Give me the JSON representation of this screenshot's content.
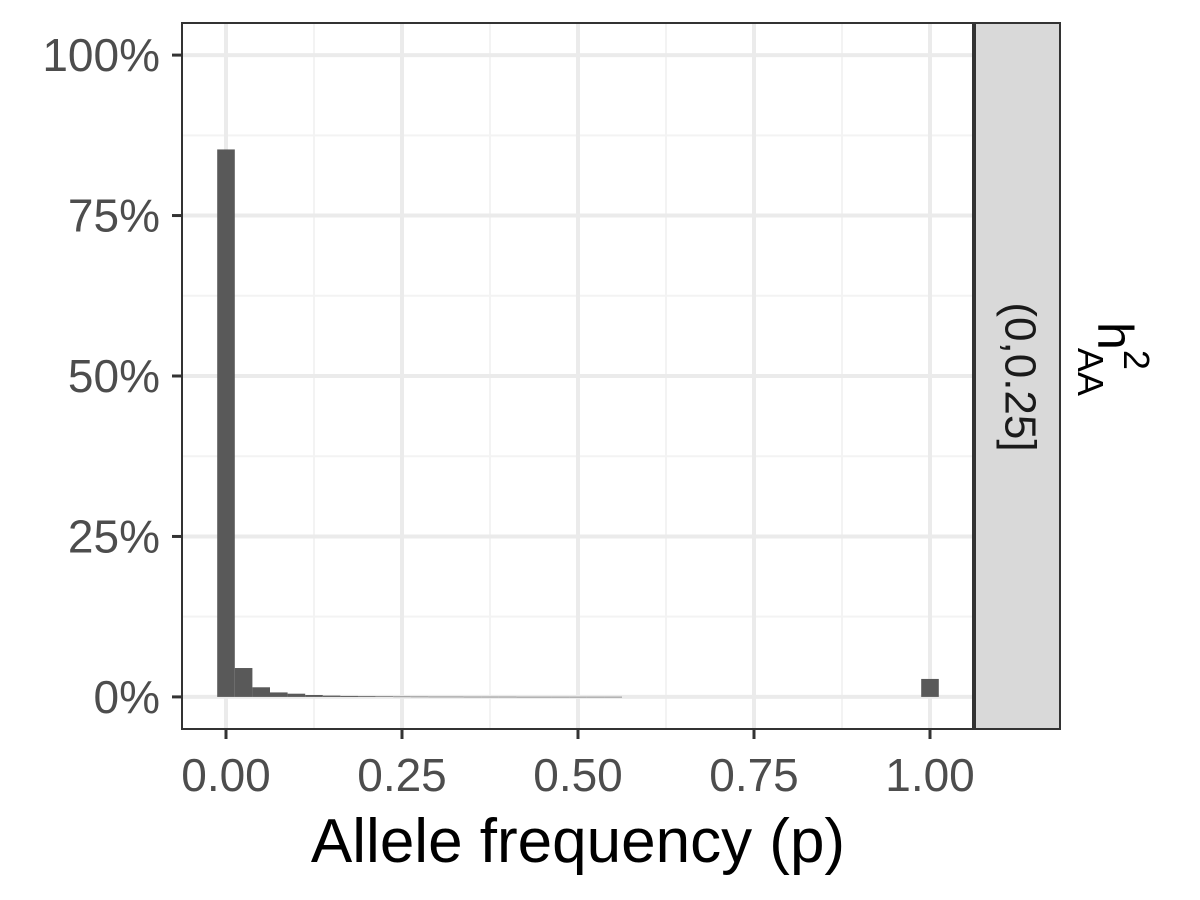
{
  "chart_data": {
    "type": "bar",
    "subtype": "histogram",
    "title": "",
    "xlabel": "Allele frequency (p)",
    "ylabel": "",
    "xlim": [
      -0.0625,
      1.0625
    ],
    "ylim": [
      -0.05,
      1.05
    ],
    "x_ticks": [
      0,
      0.25,
      0.5,
      0.75,
      1
    ],
    "x_tick_labels": [
      "0.00",
      "0.25",
      "0.50",
      "0.75",
      "1.00"
    ],
    "y_ticks": [
      0,
      0.25,
      0.5,
      0.75,
      1
    ],
    "y_tick_labels": [
      "0%",
      "25%",
      "50%",
      "75%",
      "100%"
    ],
    "grid": true,
    "bin_width": 0.025,
    "bins": [
      {
        "x0": -0.0125,
        "x1": 0.0125,
        "value": 0.853
      },
      {
        "x0": 0.0125,
        "x1": 0.0375,
        "value": 0.045
      },
      {
        "x0": 0.0375,
        "x1": 0.0625,
        "value": 0.015
      },
      {
        "x0": 0.0625,
        "x1": 0.0875,
        "value": 0.007
      },
      {
        "x0": 0.0875,
        "x1": 0.1125,
        "value": 0.005
      },
      {
        "x0": 0.1125,
        "x1": 0.1375,
        "value": 0.003
      },
      {
        "x0": 0.1375,
        "x1": 0.1625,
        "value": 0.002
      },
      {
        "x0": 0.1625,
        "x1": 0.1875,
        "value": 0.0015
      },
      {
        "x0": 0.1875,
        "x1": 0.2125,
        "value": 0.0012
      },
      {
        "x0": 0.2125,
        "x1": 0.2375,
        "value": 0.0008
      },
      {
        "x0": 0.2375,
        "x1": 0.2625,
        "value": 0.0006
      },
      {
        "x0": 0.2625,
        "x1": 0.2875,
        "value": 0.0005
      },
      {
        "x0": 0.2875,
        "x1": 0.3125,
        "value": 0.0004
      },
      {
        "x0": 0.3125,
        "x1": 0.3375,
        "value": 0.0004
      },
      {
        "x0": 0.3375,
        "x1": 0.3625,
        "value": 0.0003
      },
      {
        "x0": 0.3625,
        "x1": 0.3875,
        "value": 0.0003
      },
      {
        "x0": 0.3875,
        "x1": 0.4125,
        "value": 0.0003
      },
      {
        "x0": 0.4125,
        "x1": 0.4375,
        "value": 0.0002
      },
      {
        "x0": 0.4375,
        "x1": 0.4625,
        "value": 0.0002
      },
      {
        "x0": 0.4625,
        "x1": 0.4875,
        "value": 0.0002
      },
      {
        "x0": 0.4875,
        "x1": 0.5125,
        "value": 0.0002
      },
      {
        "x0": 0.5125,
        "x1": 0.5375,
        "value": 0.0002
      },
      {
        "x0": 0.5375,
        "x1": 0.5625,
        "value": 0.0002
      },
      {
        "x0": 0.9875,
        "x1": 1.0125,
        "value": 0.028
      }
    ],
    "facet": {
      "title_base": "h",
      "title_superscript": "2",
      "title_subscript": "AA",
      "strip_label": "(0,0.25]"
    },
    "colors": {
      "bar": "#595959",
      "grid_major": "#ebebeb",
      "grid_minor": "#f3f3f3",
      "panel_border": "#333333",
      "strip_fill": "#d9d9d9",
      "tick_text": "#4d4d4d",
      "background": "#ffffff"
    }
  }
}
